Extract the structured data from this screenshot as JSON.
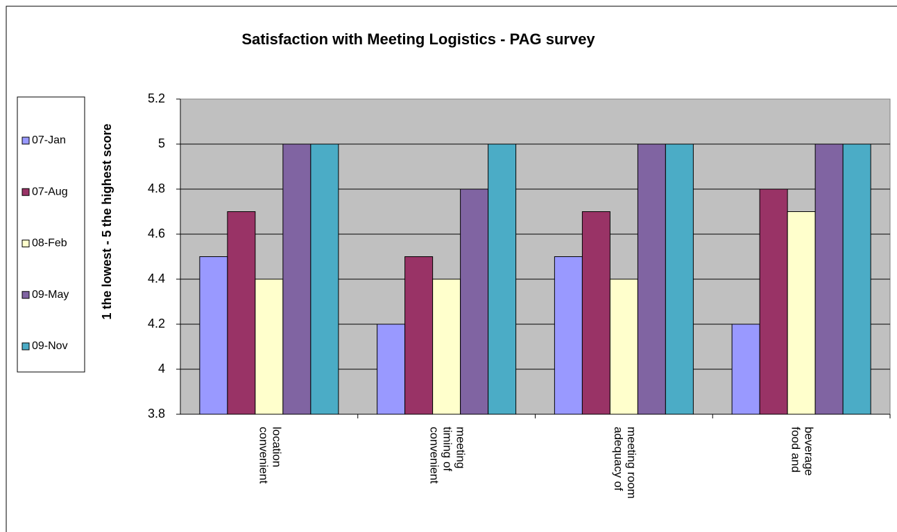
{
  "chart_data": {
    "type": "bar",
    "title": "Satisfaction with Meeting Logistics - PAG survey",
    "y_label": "1 the lowest - 5 the highest score",
    "categories": [
      "convenient location",
      "convenient timing of meeting",
      "adequacy of meeting room",
      "food and beverage"
    ],
    "series": [
      {
        "name": "07-Jan",
        "color": "#9999ff",
        "values": [
          4.5,
          4.2,
          4.5,
          4.2
        ]
      },
      {
        "name": "07-Aug",
        "color": "#993366",
        "values": [
          4.7,
          4.5,
          4.7,
          4.8
        ]
      },
      {
        "name": "08-Feb",
        "color": "#ffffcc",
        "values": [
          4.4,
          4.4,
          4.4,
          4.7
        ]
      },
      {
        "name": "09-May",
        "color": "#8064a2",
        "values": [
          5,
          4.8,
          5,
          5
        ]
      },
      {
        "name": "09-Nov",
        "color": "#4bacc6",
        "values": [
          5,
          5,
          5,
          5
        ]
      }
    ],
    "ylim": [
      3.8,
      5.2
    ],
    "yticks": [
      3.8,
      4,
      4.2,
      4.4,
      4.6,
      4.8,
      5,
      5.2
    ],
    "grid": true,
    "legend": "left"
  }
}
